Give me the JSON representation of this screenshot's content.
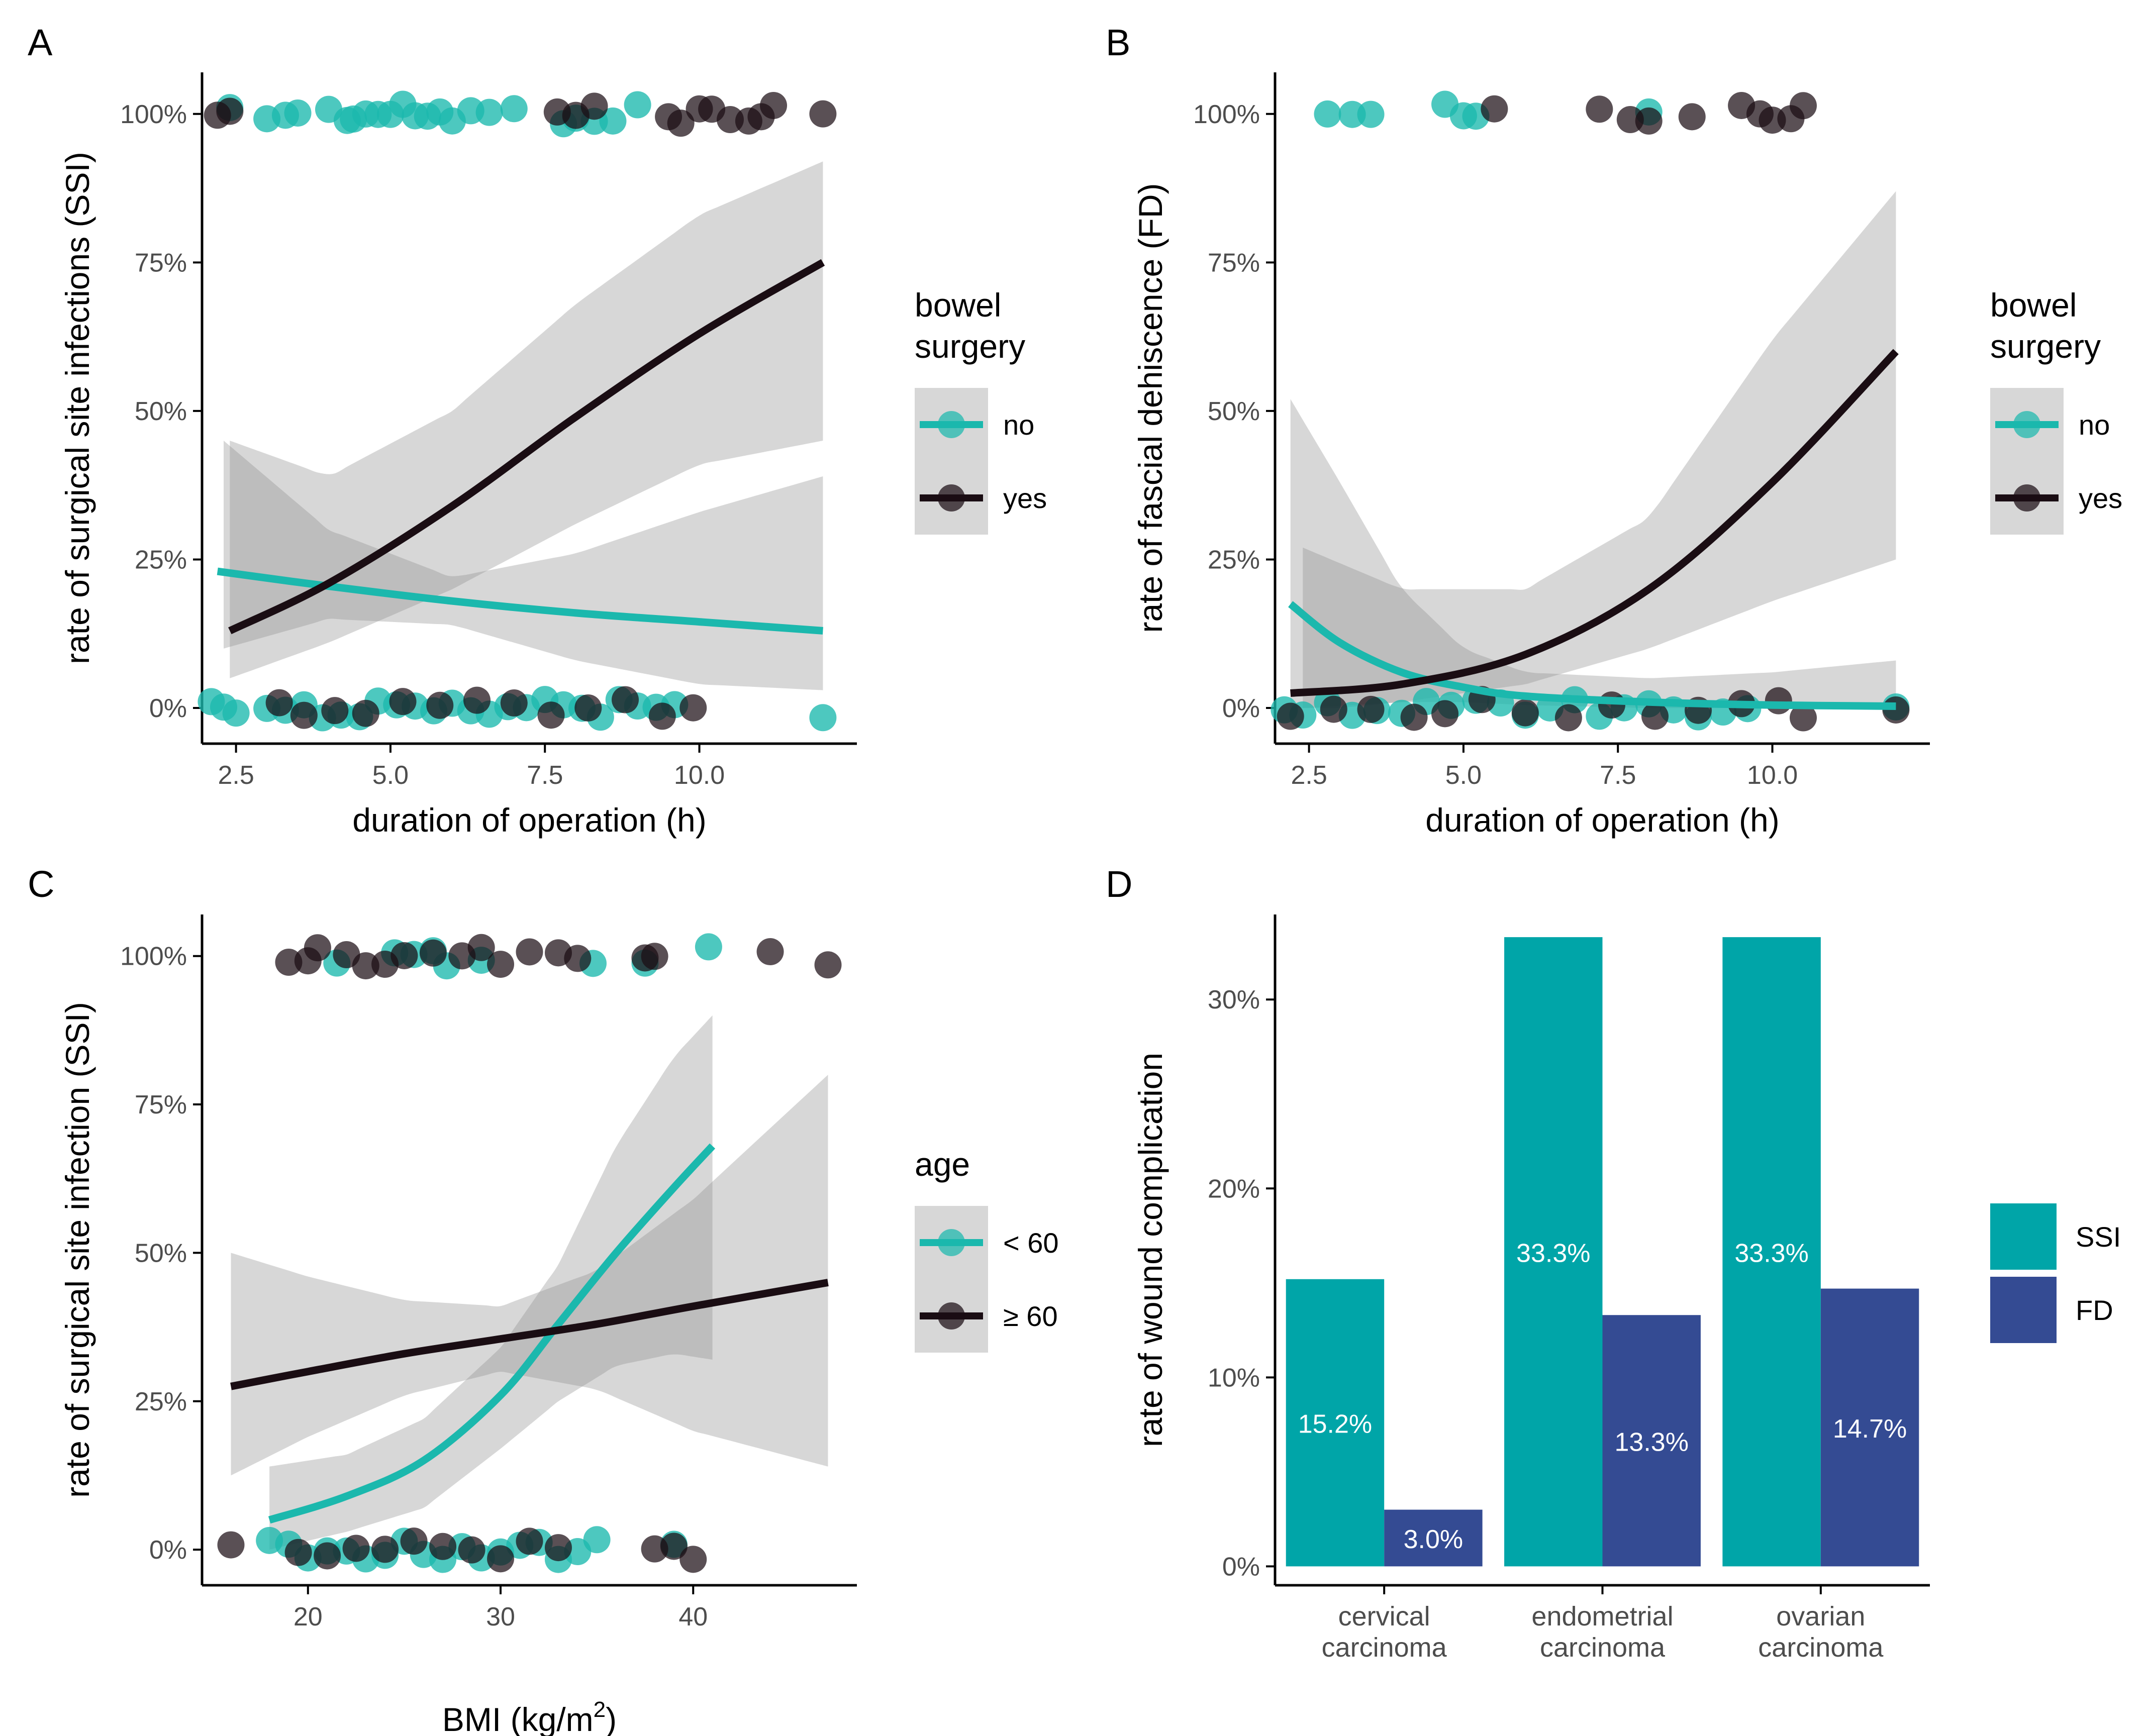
{
  "figure": {
    "palette": {
      "teal": "#1bb8ad",
      "dark": "#1a0d13",
      "band": "#8c8c8c",
      "axis": "#000000",
      "tick_text": "#4d4d4d",
      "bar_ssi": "#00a5a8",
      "bar_fd": "#344b93"
    }
  },
  "chart_data": [
    {
      "id": "A",
      "panel_label": "A",
      "type": "scatter",
      "subtype": "logistic regression with jittered binary outcome points",
      "xlabel": "duration of operation (h)",
      "ylabel": "rate of surgical site infections (SSI)",
      "xlim": [
        1.95,
        12.55
      ],
      "ylim": [
        -0.06,
        1.07
      ],
      "x_ticks": [
        2.5,
        5.0,
        7.5,
        10.0
      ],
      "x_tick_labels": [
        "2.5",
        "5.0",
        "7.5",
        "10.0"
      ],
      "y_ticks": [
        0,
        0.25,
        0.5,
        0.75,
        1.0
      ],
      "y_tick_labels": [
        "0%",
        "25%",
        "50%",
        "75%",
        "100%"
      ],
      "legend": {
        "title": [
          "bowel",
          "surgery"
        ],
        "position": "right",
        "entries": [
          {
            "label": "no",
            "color": "#1bb8ad"
          },
          {
            "label": "yes",
            "color": "#1a0d13"
          }
        ]
      },
      "series": [
        {
          "name": "no",
          "color": "#1bb8ad",
          "fit": {
            "x": [
              2.2,
              4.0,
              6.0,
              8.0,
              10.0,
              12.0
            ],
            "y": [
              0.23,
              0.205,
              0.18,
              0.16,
              0.145,
              0.13
            ]
          },
          "ci": {
            "x": [
              2.3,
              4.0,
              6.0,
              8.0,
              10.0,
              12.0
            ],
            "lower": [
              0.1,
              0.15,
              0.14,
              0.08,
              0.04,
              0.03
            ],
            "upper": [
              0.45,
              0.3,
              0.22,
              0.26,
              0.33,
              0.39
            ]
          },
          "points_y1": [
            2.4,
            3.0,
            3.3,
            3.5,
            4.0,
            4.3,
            4.4,
            4.6,
            4.8,
            5.0,
            5.2,
            5.4,
            5.6,
            5.8,
            6.0,
            6.3,
            6.6,
            7.0,
            7.8,
            8.0,
            8.3,
            8.6,
            9.0
          ],
          "points_y0": [
            2.1,
            2.3,
            2.5,
            3.0,
            3.3,
            3.6,
            3.9,
            4.2,
            4.5,
            4.8,
            5.1,
            5.4,
            5.7,
            6.0,
            6.3,
            6.6,
            6.9,
            7.2,
            7.5,
            7.8,
            8.1,
            8.4,
            8.7,
            9.0,
            9.3,
            9.6,
            12.0
          ]
        },
        {
          "name": "yes",
          "color": "#1a0d13",
          "fit": {
            "x": [
              2.4,
              4.0,
              6.0,
              8.0,
              10.0,
              12.0
            ],
            "y": [
              0.13,
              0.21,
              0.34,
              0.49,
              0.63,
              0.75
            ]
          },
          "ci": {
            "x": [
              2.4,
              4.0,
              6.0,
              8.0,
              10.0,
              12.0
            ],
            "lower": [
              0.05,
              0.11,
              0.2,
              0.31,
              0.41,
              0.45
            ],
            "upper": [
              0.45,
              0.39,
              0.5,
              0.68,
              0.83,
              0.92
            ]
          },
          "points_y1": [
            2.2,
            2.4,
            7.7,
            8.0,
            8.3,
            9.5,
            9.7,
            10.0,
            10.2,
            10.5,
            10.8,
            11.0,
            11.2,
            12.0
          ],
          "points_y0": [
            3.2,
            3.6,
            4.1,
            4.6,
            5.2,
            5.8,
            6.4,
            7.0,
            7.6,
            8.2,
            8.8,
            9.4,
            9.9
          ]
        }
      ]
    },
    {
      "id": "B",
      "panel_label": "B",
      "type": "scatter",
      "subtype": "logistic regression with jittered binary outcome points",
      "xlabel": "duration of operation (h)",
      "ylabel": "rate of fascial dehiscence (FD)",
      "xlim": [
        1.95,
        12.55
      ],
      "ylim": [
        -0.06,
        1.07
      ],
      "x_ticks": [
        2.5,
        5.0,
        7.5,
        10.0
      ],
      "x_tick_labels": [
        "2.5",
        "5.0",
        "7.5",
        "10.0"
      ],
      "y_ticks": [
        0,
        0.25,
        0.5,
        0.75,
        1.0
      ],
      "y_tick_labels": [
        "0%",
        "25%",
        "50%",
        "75%",
        "100%"
      ],
      "legend": {
        "title": [
          "bowel",
          "surgery"
        ],
        "position": "right",
        "entries": [
          {
            "label": "no",
            "color": "#1bb8ad"
          },
          {
            "label": "yes",
            "color": "#1a0d13"
          }
        ]
      },
      "series": [
        {
          "name": "no",
          "color": "#1bb8ad",
          "fit": {
            "x": [
              2.2,
              3.0,
              4.0,
              5.0,
              6.0,
              8.0,
              10.0,
              12.0
            ],
            "y": [
              0.175,
              0.11,
              0.06,
              0.035,
              0.02,
              0.01,
              0.005,
              0.003
            ]
          },
          "ci": {
            "x": [
              2.2,
              3.0,
              4.0,
              5.0,
              6.0,
              8.0,
              10.0,
              12.0
            ],
            "lower": [
              0.0,
              0.0,
              0.01,
              0.01,
              0.005,
              0.0,
              0.0,
              0.0
            ],
            "upper": [
              0.52,
              0.38,
              0.2,
              0.1,
              0.06,
              0.05,
              0.06,
              0.08
            ]
          },
          "points_y1": [
            2.8,
            3.2,
            3.5,
            4.7,
            5.0,
            5.2,
            8.0
          ],
          "points_y0": [
            2.1,
            2.4,
            2.8,
            3.2,
            3.6,
            4.0,
            4.4,
            4.8,
            5.2,
            5.6,
            6.0,
            6.4,
            6.8,
            7.2,
            7.6,
            8.0,
            8.4,
            8.8,
            9.2,
            9.6,
            12.0
          ]
        },
        {
          "name": "yes",
          "color": "#1a0d13",
          "fit": {
            "x": [
              2.2,
              4.0,
              6.0,
              8.0,
              10.0,
              12.0
            ],
            "y": [
              0.025,
              0.04,
              0.09,
              0.2,
              0.38,
              0.6
            ]
          },
          "ci": {
            "x": [
              2.4,
              4.0,
              6.0,
              8.0,
              10.0,
              12.0
            ],
            "lower": [
              0.0,
              0.01,
              0.04,
              0.1,
              0.18,
              0.25
            ],
            "upper": [
              0.27,
              0.2,
              0.2,
              0.32,
              0.62,
              0.87
            ]
          },
          "points_y1": [
            5.5,
            7.2,
            7.7,
            8.0,
            8.7,
            9.5,
            9.8,
            10.0,
            10.3,
            10.5
          ],
          "points_y0": [
            2.2,
            2.9,
            3.5,
            4.2,
            4.7,
            5.3,
            6.0,
            6.7,
            7.4,
            8.1,
            8.8,
            9.5,
            10.1,
            10.5,
            12.0
          ]
        }
      ]
    },
    {
      "id": "C",
      "panel_label": "C",
      "type": "scatter",
      "subtype": "logistic regression with jittered binary outcome points",
      "xlabel": "BMI",
      "xlabel_unit_main": "kg/m",
      "xlabel_unit_sup": "2",
      "ylabel": "rate of surgical site infection (SSI)",
      "xlim": [
        14.5,
        48.5
      ],
      "ylim": [
        -0.06,
        1.07
      ],
      "x_ticks": [
        20,
        30,
        40
      ],
      "x_tick_labels": [
        "20",
        "30",
        "40"
      ],
      "y_ticks": [
        0,
        0.25,
        0.5,
        0.75,
        1.0
      ],
      "y_tick_labels": [
        "0%",
        "25%",
        "50%",
        "75%",
        "100%"
      ],
      "legend": {
        "title": [
          "age"
        ],
        "position": "right",
        "entries": [
          {
            "label": "< 60",
            "color": "#1bb8ad"
          },
          {
            "label": "≥ 60",
            "color": "#1a0d13"
          }
        ]
      },
      "series": [
        {
          "name": "< 60",
          "color": "#1bb8ad",
          "fit": {
            "x": [
              18,
              22,
              26,
              30,
              33,
              36,
              39,
              41
            ],
            "y": [
              0.05,
              0.09,
              0.15,
              0.26,
              0.38,
              0.5,
              0.61,
              0.68
            ]
          },
          "ci": {
            "x": [
              18,
              22,
              26,
              30,
              33,
              36,
              39,
              41
            ],
            "lower": [
              0.0,
              0.03,
              0.07,
              0.17,
              0.25,
              0.31,
              0.33,
              0.32
            ],
            "upper": [
              0.14,
              0.16,
              0.22,
              0.34,
              0.48,
              0.68,
              0.83,
              0.9
            ]
          },
          "points_y1": [
            21.5,
            24.5,
            25.5,
            26.5,
            27.2,
            29.0,
            34.8,
            37.5,
            40.8
          ],
          "points_y0": [
            18.0,
            19.0,
            20.0,
            21.0,
            22.0,
            23.0,
            24.0,
            25.0,
            26.0,
            27.0,
            28.0,
            29.0,
            30.0,
            31.0,
            32.0,
            33.0,
            34.0,
            35.0,
            39.0
          ]
        },
        {
          "name": "≥ 60",
          "color": "#1a0d13",
          "fit": {
            "x": [
              16,
              20,
              25,
              30,
              35,
              40,
              47
            ],
            "y": [
              0.275,
              0.3,
              0.33,
              0.355,
              0.38,
              0.41,
              0.45
            ]
          },
          "ci": {
            "x": [
              16,
              20,
              25,
              30,
              35,
              40,
              47
            ],
            "lower": [
              0.125,
              0.19,
              0.26,
              0.3,
              0.27,
              0.2,
              0.14
            ],
            "upper": [
              0.5,
              0.46,
              0.42,
              0.41,
              0.47,
              0.59,
              0.8
            ]
          },
          "points_y1": [
            19.0,
            20.0,
            20.5,
            22.0,
            23.0,
            24.0,
            25.0,
            26.5,
            28.0,
            29.0,
            30.0,
            31.5,
            33.0,
            34.0,
            37.5,
            38.0,
            44.0,
            47.0
          ],
          "points_y0": [
            16.0,
            19.5,
            21.0,
            22.5,
            24.0,
            25.5,
            27.0,
            28.5,
            30.0,
            31.5,
            33.0,
            38.0,
            39.0,
            40.0
          ]
        }
      ]
    },
    {
      "id": "D",
      "panel_label": "D",
      "type": "bar",
      "xlabel": "",
      "ylabel": "rate of wound complication",
      "ylim": [
        -0.01,
        0.345
      ],
      "y_ticks": [
        0,
        0.1,
        0.2,
        0.3
      ],
      "y_tick_labels": [
        "0%",
        "10%",
        "20%",
        "30%"
      ],
      "categories": [
        [
          "cervical",
          "carcinoma"
        ],
        [
          "endometrial",
          "carcinoma"
        ],
        [
          "ovarian",
          "carcinoma"
        ]
      ],
      "legend": {
        "title": [],
        "position": "right",
        "entries": [
          {
            "label": "SSI",
            "color": "#00a5a8"
          },
          {
            "label": "FD",
            "color": "#344b93"
          }
        ]
      },
      "series": [
        {
          "name": "SSI",
          "color": "#00a5a8",
          "values": [
            0.152,
            0.333,
            0.333
          ],
          "labels": [
            "15.2%",
            "33.3%",
            "33.3%"
          ]
        },
        {
          "name": "FD",
          "color": "#344b93",
          "values": [
            0.03,
            0.133,
            0.147
          ],
          "labels": [
            "3.0%",
            "13.3%",
            "14.7%"
          ]
        }
      ]
    }
  ]
}
